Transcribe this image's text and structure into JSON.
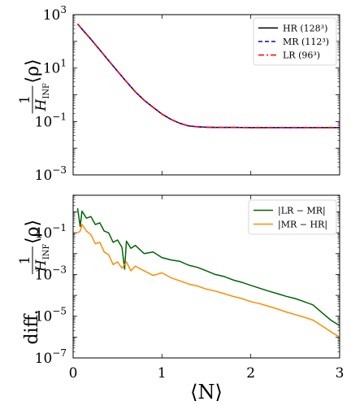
{
  "chart_data": [
    {
      "type": "line",
      "yscale": "log",
      "ylim_exp": [
        -3,
        3
      ],
      "xlim": [
        0,
        3
      ],
      "xticks": [
        0,
        1,
        2,
        3
      ],
      "yticks_exp": [
        -3,
        -1,
        1,
        3
      ],
      "ylabel": "1/H_INF ⟨ρ⟩",
      "legend_position": "top-right",
      "series": [
        {
          "name": "HR (128³)",
          "color": "#000000",
          "dash": "solid",
          "x": [
            0.05,
            0.1,
            0.2,
            0.3,
            0.4,
            0.5,
            0.6,
            0.7,
            0.8,
            0.9,
            1.0,
            1.1,
            1.2,
            1.3,
            1.4,
            1.5,
            1.6,
            1.7,
            1.8,
            2.0,
            2.2,
            2.5,
            2.8,
            3.0
          ],
          "y": [
            450,
            290,
            120,
            48,
            19,
            7.6,
            3.1,
            1.3,
            0.62,
            0.34,
            0.19,
            0.12,
            0.086,
            0.068,
            0.063,
            0.061,
            0.06,
            0.06,
            0.06,
            0.059,
            0.059,
            0.059,
            0.059,
            0.059
          ]
        },
        {
          "name": "MR (112³)",
          "color": "#0000ee",
          "dash": "5,3",
          "x": [
            0.05,
            0.1,
            0.2,
            0.3,
            0.4,
            0.5,
            0.6,
            0.7,
            0.8,
            0.9,
            1.0,
            1.1,
            1.2,
            1.3,
            1.4,
            1.5,
            1.6,
            1.7,
            1.8,
            2.0,
            2.2,
            2.5,
            2.8,
            3.0
          ],
          "y": [
            450,
            290,
            120,
            48,
            19,
            7.6,
            3.1,
            1.3,
            0.62,
            0.34,
            0.19,
            0.12,
            0.086,
            0.068,
            0.063,
            0.061,
            0.06,
            0.06,
            0.06,
            0.059,
            0.059,
            0.059,
            0.059,
            0.059
          ]
        },
        {
          "name": "LR (96³)",
          "color": "#ff0000",
          "dash": "7,3,2,3",
          "x": [
            0.05,
            0.1,
            0.2,
            0.3,
            0.4,
            0.5,
            0.6,
            0.7,
            0.8,
            0.9,
            1.0,
            1.1,
            1.2,
            1.3,
            1.4,
            1.5,
            1.6,
            1.7,
            1.8,
            2.0,
            2.2,
            2.5,
            2.8,
            3.0
          ],
          "y": [
            450,
            290,
            120,
            48,
            19,
            7.6,
            3.1,
            1.3,
            0.62,
            0.34,
            0.19,
            0.12,
            0.086,
            0.068,
            0.063,
            0.061,
            0.06,
            0.06,
            0.06,
            0.059,
            0.059,
            0.059,
            0.059,
            0.059
          ]
        }
      ]
    },
    {
      "type": "line",
      "yscale": "log",
      "ylim_exp": [
        -7,
        0.8
      ],
      "xlim": [
        0,
        3
      ],
      "xticks": [
        0,
        1,
        2,
        3
      ],
      "yticks_exp": [
        -7,
        -5,
        -3,
        -1
      ],
      "xlabel": "⟨N⟩",
      "ylabel": "diff. 1/H_INF ⟨ρ⟩",
      "legend_position": "top-right",
      "series": [
        {
          "name": "|LR − MR|",
          "color": "#006400",
          "dash": "solid",
          "x": [
            0.05,
            0.08,
            0.1,
            0.15,
            0.2,
            0.25,
            0.3,
            0.35,
            0.4,
            0.45,
            0.5,
            0.55,
            0.58,
            0.6,
            0.65,
            0.7,
            0.8,
            0.9,
            1.0,
            1.1,
            1.2,
            1.3,
            1.4,
            1.5,
            1.6,
            1.7,
            1.8,
            1.9,
            2.0,
            2.1,
            2.2,
            2.3,
            2.4,
            2.5,
            2.6,
            2.7,
            2.8,
            2.9,
            3.0
          ],
          "y": [
            1.5,
            0.2,
            1.1,
            0.5,
            0.6,
            0.25,
            0.3,
            0.12,
            0.1,
            0.035,
            0.045,
            0.02,
            0.0018,
            0.04,
            0.018,
            0.025,
            0.01,
            0.012,
            0.0065,
            0.005,
            0.0043,
            0.0028,
            0.0022,
            0.0015,
            0.001,
            0.0008,
            0.00055,
            0.00042,
            0.0003,
            0.00022,
            0.00016,
            0.00012,
            9e-05,
            7e-05,
            5e-05,
            3.5e-05,
            1.5e-05,
            6.5e-06,
            3.5e-06
          ]
        },
        {
          "name": "|MR − HR|",
          "color": "#ff8c00",
          "dash": "solid",
          "x": [
            0.05,
            0.08,
            0.1,
            0.15,
            0.2,
            0.25,
            0.3,
            0.35,
            0.4,
            0.45,
            0.5,
            0.55,
            0.6,
            0.65,
            0.7,
            0.8,
            0.9,
            1.0,
            1.1,
            1.2,
            1.3,
            1.4,
            1.5,
            1.6,
            1.7,
            1.8,
            1.9,
            2.0,
            2.1,
            2.2,
            2.3,
            2.4,
            2.5,
            2.6,
            2.7,
            2.8,
            2.9,
            3.0
          ],
          "y": [
            0.1,
            0.12,
            0.25,
            0.12,
            0.08,
            0.03,
            0.035,
            0.012,
            0.009,
            0.003,
            0.004,
            0.002,
            0.004,
            0.0015,
            0.0025,
            0.0015,
            0.0009,
            0.0012,
            0.0007,
            0.0005,
            0.00035,
            0.00028,
            0.0002,
            0.00016,
            0.00012,
            9e-05,
            7e-05,
            5e-05,
            4e-05,
            3e-05,
            2.2e-05,
            1.6e-05,
            1.2e-05,
            9e-06,
            6.5e-06,
            3.5e-06,
            1.8e-06,
            1e-06
          ]
        }
      ]
    }
  ]
}
